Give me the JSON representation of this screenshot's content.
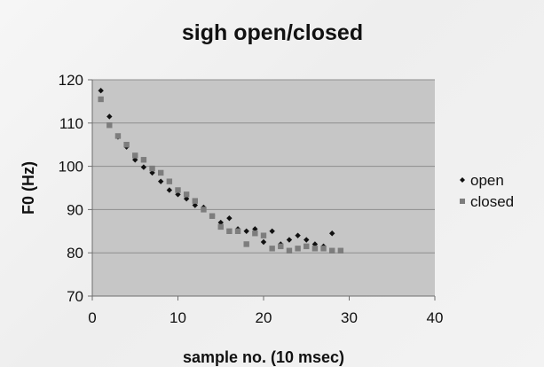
{
  "chart_data": {
    "type": "scatter",
    "title": "sigh open/closed",
    "xlabel": "sample no. (10 msec)",
    "ylabel": "F0 (Hz)",
    "xlim": [
      0,
      40
    ],
    "ylim": [
      70,
      120
    ],
    "x_ticks": [
      0,
      10,
      20,
      30,
      40
    ],
    "y_ticks": [
      70,
      80,
      90,
      100,
      110,
      120
    ],
    "grid": "horizontal",
    "legend_position": "right",
    "colors": {
      "plot_area": "#c6c6c6",
      "open": "#111111",
      "closed": "#7d7d7d"
    },
    "series": [
      {
        "name": "open",
        "marker": "diamond",
        "x": [
          1,
          2,
          3,
          4,
          5,
          6,
          7,
          8,
          9,
          10,
          11,
          12,
          13,
          14,
          15,
          16,
          17,
          18,
          19,
          20,
          21,
          22,
          23,
          24,
          25,
          26,
          27,
          28
        ],
        "y": [
          117.5,
          111.5,
          106.8,
          104.5,
          101.5,
          99.8,
          98.5,
          96.5,
          94.5,
          93.5,
          92.5,
          91.0,
          90.5,
          88.5,
          87.0,
          88.0,
          85.5,
          85.0,
          85.5,
          82.5,
          85.0,
          82.0,
          83.0,
          84.0,
          83.0,
          82.0,
          81.5,
          84.5
        ]
      },
      {
        "name": "closed",
        "marker": "square",
        "x": [
          1,
          2,
          3,
          4,
          5,
          6,
          7,
          8,
          9,
          10,
          11,
          12,
          13,
          14,
          15,
          16,
          17,
          18,
          19,
          20,
          21,
          22,
          23,
          24,
          25,
          26,
          27,
          28,
          29
        ],
        "y": [
          115.5,
          109.5,
          107.0,
          105.0,
          102.5,
          101.5,
          99.5,
          98.5,
          96.5,
          94.5,
          93.5,
          92.0,
          90.0,
          88.5,
          86.0,
          85.0,
          85.0,
          82.0,
          84.5,
          84.0,
          81.0,
          81.5,
          80.5,
          81.0,
          81.5,
          81.0,
          81.0,
          80.5,
          80.5
        ]
      }
    ]
  }
}
